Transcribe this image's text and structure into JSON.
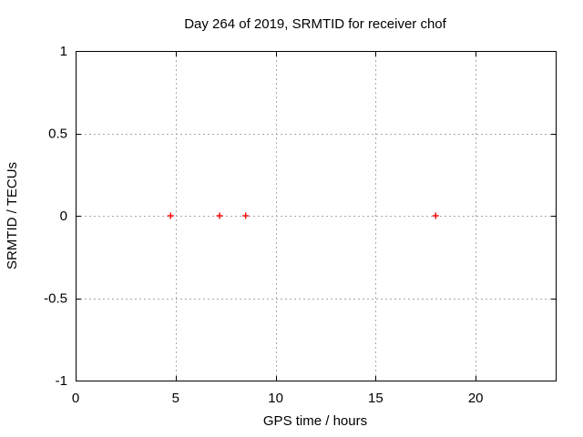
{
  "chart_data": {
    "type": "scatter",
    "title": "Day 264 of 2019, SRMTID for receiver chof",
    "xlabel": "GPS time / hours",
    "ylabel": "SRMTID / TECUs",
    "xlim": [
      0,
      24
    ],
    "ylim": [
      -1,
      1
    ],
    "xticks": [
      0,
      5,
      10,
      15,
      20
    ],
    "xtick_labels": [
      "0",
      "5",
      "10",
      "15",
      "20"
    ],
    "yticks": [
      -1,
      -0.5,
      0,
      0.5,
      1
    ],
    "ytick_labels": [
      "-1",
      "-0.5",
      "0",
      "0.5",
      "1"
    ],
    "grid": "dashed major gridlines, mirrored inward ticks",
    "legend_position": "none",
    "series": [
      {
        "name": "SRMTID",
        "marker": "plus",
        "color": "#ff0000",
        "points": [
          {
            "x": 4.75,
            "y": 0
          },
          {
            "x": 7.2,
            "y": 0
          },
          {
            "x": 8.5,
            "y": 0
          },
          {
            "x": 18.0,
            "y": 0
          }
        ]
      }
    ],
    "colors": {
      "background": "#ffffff",
      "border": "#000000",
      "grid": "#a9a9a9",
      "text": "#000000",
      "marker": "#ff0000"
    }
  }
}
